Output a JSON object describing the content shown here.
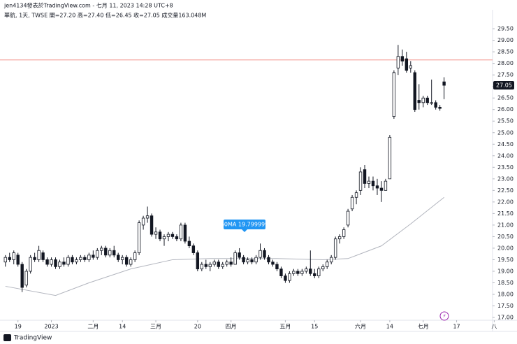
{
  "chart_data": {
    "type": "candlestick",
    "title": "jen4134發表於TradingView.com - 七月 11, 2023 14:28 UTC+8",
    "subtitle": "華航, 1天, TWSE  開=27.20  高=27.40  低=26.45  收=27.05  成交量163.048M",
    "annotation": "60MA 19.799999",
    "footer": "TradingView",
    "x": [
      0,
      1,
      2,
      3,
      4,
      5,
      6,
      7,
      8,
      9,
      10,
      11,
      12,
      13,
      14,
      15,
      16,
      17,
      18,
      19,
      20,
      21,
      22,
      23,
      24,
      25,
      26,
      27,
      28,
      29,
      30,
      31,
      32,
      33,
      34,
      35,
      36,
      37,
      38,
      39,
      40,
      41,
      42,
      43,
      44,
      45,
      46,
      47,
      48,
      49,
      50,
      51,
      52,
      53,
      54,
      55,
      56,
      57,
      58,
      59,
      60,
      61,
      62,
      63,
      64,
      65,
      66,
      67,
      68,
      69,
      70,
      71,
      72,
      73,
      74,
      75,
      76,
      77,
      78,
      79,
      80,
      81,
      82,
      83,
      84,
      85,
      86,
      87,
      88,
      89,
      90,
      91,
      92,
      93,
      94,
      95,
      96,
      97,
      98,
      99,
      100,
      101,
      102,
      103,
      104,
      105
    ],
    "open": [
      19.4,
      19.6,
      19.5,
      19.7,
      19.3,
      18.4,
      19.0,
      19.6,
      19.5,
      19.8,
      19.5,
      19.3,
      19.5,
      19.2,
      19.4,
      19.3,
      19.6,
      19.4,
      19.5,
      19.6,
      19.5,
      19.7,
      19.6,
      19.9,
      20.0,
      19.7,
      19.9,
      19.7,
      19.5,
      19.6,
      19.3,
      19.5,
      19.8,
      21.0,
      21.3,
      21.4,
      20.6,
      20.7,
      20.4,
      20.5,
      20.6,
      20.5,
      20.4,
      21.0,
      20.3,
      20.1,
      19.8,
      19.1,
      19.3,
      19.2,
      19.3,
      19.4,
      19.2,
      19.3,
      19.4,
      19.3,
      19.8,
      19.6,
      19.4,
      19.5,
      19.4,
      19.6,
      19.9,
      19.6,
      19.4,
      19.3,
      19.1,
      18.8,
      18.6,
      18.9,
      19.0,
      18.9,
      19.0,
      19.1,
      18.9,
      18.8,
      19.1,
      19.2,
      19.4,
      19.6,
      20.4,
      20.5,
      21.0,
      21.7,
      22.2,
      22.5,
      23.4,
      22.8,
      22.9,
      22.7,
      22.6,
      22.5,
      23.0,
      25.7,
      27.8,
      28.3,
      28.2,
      27.8,
      27.6,
      26.4,
      26.3,
      26.5,
      26.3,
      26.3,
      26.1,
      27.2
    ],
    "high": [
      19.7,
      19.8,
      19.9,
      19.8,
      19.4,
      19.1,
      19.7,
      19.8,
      20.1,
      19.9,
      19.6,
      19.6,
      19.6,
      19.5,
      19.6,
      19.7,
      19.7,
      19.6,
      19.7,
      19.7,
      19.8,
      19.9,
      20.0,
      20.1,
      20.1,
      20.0,
      20.1,
      19.8,
      19.7,
      19.7,
      19.6,
      19.9,
      21.2,
      21.4,
      21.8,
      21.5,
      20.9,
      20.8,
      20.6,
      20.7,
      20.7,
      20.6,
      21.1,
      21.1,
      20.5,
      20.2,
      19.9,
      19.4,
      19.5,
      19.4,
      19.5,
      19.5,
      19.4,
      19.5,
      19.6,
      19.9,
      20.0,
      19.7,
      19.6,
      19.6,
      19.7,
      20.2,
      20.0,
      19.7,
      19.5,
      19.4,
      19.2,
      18.9,
      19.0,
      19.1,
      19.1,
      19.1,
      19.2,
      19.9,
      19.1,
      19.2,
      19.3,
      19.5,
      19.7,
      20.5,
      20.6,
      20.9,
      21.7,
      22.3,
      22.5,
      23.5,
      23.6,
      23.1,
      23.1,
      23.0,
      22.9,
      23.0,
      24.9,
      27.7,
      28.8,
      28.6,
      28.5,
      28.1,
      27.7,
      27.1,
      26.6,
      26.6,
      27.3,
      26.4,
      26.2,
      27.4
    ],
    "low": [
      19.2,
      19.4,
      19.3,
      19.2,
      18.1,
      18.3,
      18.9,
      19.4,
      19.4,
      19.4,
      19.2,
      19.2,
      19.1,
      19.1,
      19.2,
      19.2,
      19.3,
      19.3,
      19.4,
      19.4,
      19.4,
      19.5,
      19.5,
      19.7,
      19.6,
      19.6,
      19.6,
      19.4,
      19.3,
      19.2,
      19.2,
      19.4,
      19.7,
      20.8,
      21.1,
      20.5,
      20.4,
      20.3,
      20.1,
      20.3,
      20.4,
      20.3,
      20.3,
      20.2,
      20.0,
      19.7,
      19.0,
      19.0,
      19.1,
      19.0,
      19.2,
      19.1,
      19.1,
      19.2,
      19.2,
      19.3,
      19.5,
      19.3,
      19.3,
      19.3,
      19.3,
      19.5,
      19.5,
      19.3,
      19.2,
      19.0,
      18.7,
      18.5,
      18.5,
      18.8,
      18.8,
      18.8,
      18.9,
      18.8,
      18.7,
      18.7,
      19.0,
      19.1,
      19.3,
      19.5,
      20.2,
      20.4,
      20.9,
      21.6,
      21.9,
      22.3,
      22.6,
      22.6,
      22.5,
      22.3,
      22.0,
      22.5,
      23.0,
      25.6,
      27.5,
      27.9,
      27.6,
      27.6,
      25.9,
      26.0,
      26.1,
      26.2,
      26.2,
      26.0,
      25.95,
      26.45
    ],
    "close": [
      19.6,
      19.5,
      19.8,
      19.3,
      18.3,
      19.0,
      19.6,
      19.5,
      19.9,
      19.5,
      19.3,
      19.5,
      19.2,
      19.4,
      19.3,
      19.6,
      19.4,
      19.5,
      19.6,
      19.5,
      19.7,
      19.6,
      19.9,
      20.0,
      19.7,
      19.9,
      19.7,
      19.5,
      19.6,
      19.3,
      19.5,
      19.8,
      21.1,
      21.3,
      21.4,
      20.6,
      20.7,
      20.4,
      20.5,
      20.6,
      20.5,
      20.4,
      21.0,
      20.3,
      20.1,
      19.8,
      19.1,
      19.3,
      19.2,
      19.3,
      19.4,
      19.2,
      19.3,
      19.4,
      19.3,
      19.8,
      19.6,
      19.4,
      19.5,
      19.4,
      19.6,
      19.9,
      19.6,
      19.4,
      19.3,
      19.1,
      18.8,
      18.6,
      18.9,
      19.0,
      18.9,
      19.0,
      19.1,
      18.9,
      18.8,
      19.1,
      19.2,
      19.4,
      19.6,
      20.4,
      20.5,
      20.8,
      21.6,
      22.2,
      22.4,
      23.3,
      22.8,
      22.9,
      22.7,
      22.6,
      22.5,
      22.9,
      24.8,
      27.6,
      28.3,
      28.1,
      27.7,
      27.9,
      26.0,
      26.3,
      26.5,
      26.3,
      26.3,
      26.1,
      26.05,
      27.05
    ],
    "colors": {
      "up": "#ffffff",
      "down": "#131722",
      "outline": "#131722"
    },
    "ma_x": [
      0,
      12,
      20,
      30,
      40,
      49,
      65,
      76,
      82,
      90,
      97,
      105
    ],
    "ma_values": [
      18.35,
      17.95,
      18.5,
      19.1,
      19.5,
      19.55,
      19.55,
      19.5,
      19.55,
      20.1,
      21.05,
      22.2
    ],
    "ma_color": "#b2b5be",
    "hline": 28.15,
    "hline_color": "#f28b82",
    "xlim": [
      -1.3,
      116.6
    ],
    "xticks": [
      {
        "value": 3,
        "label": "19"
      },
      {
        "value": 11,
        "label": "2023"
      },
      {
        "value": 21,
        "label": "二月"
      },
      {
        "value": 28,
        "label": "14"
      },
      {
        "value": 36,
        "label": "三月"
      },
      {
        "value": 46,
        "label": "20"
      },
      {
        "value": 54,
        "label": "四月"
      },
      {
        "value": 67,
        "label": "五月"
      },
      {
        "value": 74,
        "label": "15"
      },
      {
        "value": 85,
        "label": "六月"
      },
      {
        "value": 92,
        "label": "14"
      },
      {
        "value": 100,
        "label": "七月"
      },
      {
        "value": 108,
        "label": "17"
      },
      {
        "value": 117,
        "label": "八"
      }
    ],
    "ylim": [
      16.88,
      30.32
    ],
    "yticks": [
      {
        "value": 17,
        "label": "17.00"
      },
      {
        "value": 17.5,
        "label": "17.50"
      },
      {
        "value": 18,
        "label": "18.00"
      },
      {
        "value": 18.5,
        "label": "18.50"
      },
      {
        "value": 19,
        "label": "19.00"
      },
      {
        "value": 19.5,
        "label": "19.50"
      },
      {
        "value": 20,
        "label": "20.00"
      },
      {
        "value": 20.5,
        "label": "20.50"
      },
      {
        "value": 21,
        "label": "21.00"
      },
      {
        "value": 21.5,
        "label": "21.50"
      },
      {
        "value": 22,
        "label": "22.00"
      },
      {
        "value": 22.5,
        "label": "22.50"
      },
      {
        "value": 23,
        "label": "23.00"
      },
      {
        "value": 23.5,
        "label": "23.50"
      },
      {
        "value": 24,
        "label": "24.00"
      },
      {
        "value": 24.5,
        "label": "24.50"
      },
      {
        "value": 25,
        "label": "25.00"
      },
      {
        "value": 25.5,
        "label": "25.50"
      },
      {
        "value": 26,
        "label": "26.00"
      },
      {
        "value": 26.5,
        "label": "26.50"
      },
      {
        "value": 27,
        "label": "27.00"
      },
      {
        "value": 27.5,
        "label": "27.50"
      },
      {
        "value": 28,
        "label": "28.00"
      },
      {
        "value": 28.5,
        "label": "28.50"
      },
      {
        "value": 29,
        "label": "29.00"
      },
      {
        "value": 29.5,
        "label": "29.50"
      }
    ],
    "grid": false
  }
}
